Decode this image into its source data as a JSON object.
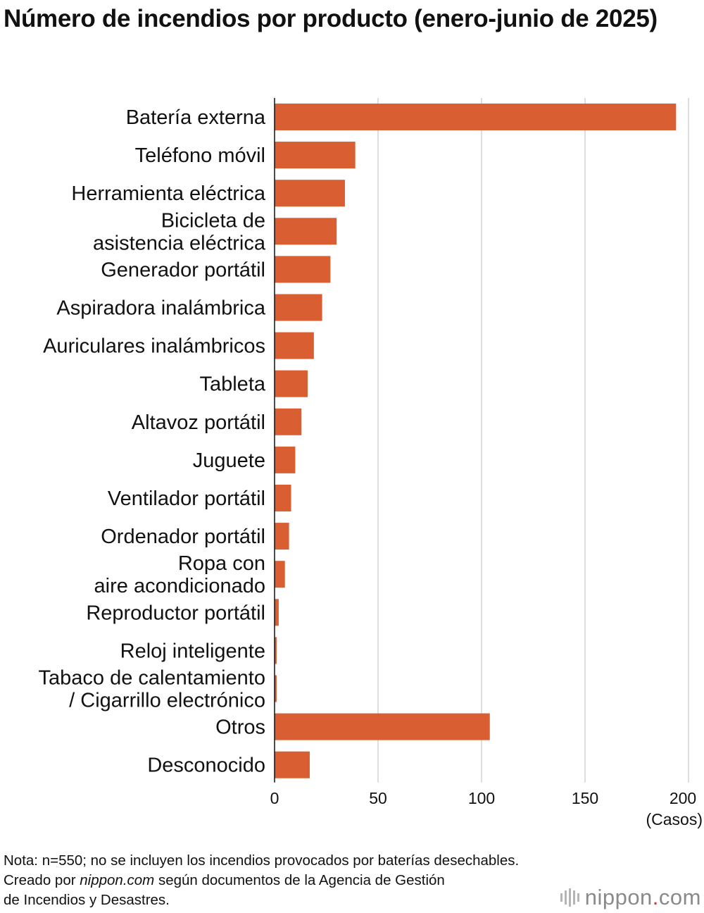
{
  "title": "Número de incendios por producto (enero-junio de 2025)",
  "chart_data": {
    "type": "bar",
    "orientation": "horizontal",
    "title": "Número de incendios por producto (enero-junio de 2025)",
    "unit_label": "(Casos)",
    "xlim": [
      0,
      200
    ],
    "x_ticks": [
      0,
      50,
      100,
      150,
      200
    ],
    "grid": true,
    "bar_color": "#d95f32",
    "categories": [
      [
        "Batería externa"
      ],
      [
        "Teléfono móvil"
      ],
      [
        "Herramienta eléctrica"
      ],
      [
        "Bicicleta de",
        "asistencia eléctrica"
      ],
      [
        "Generador portátil"
      ],
      [
        "Aspiradora inalámbrica"
      ],
      [
        "Auriculares inalámbricos"
      ],
      [
        "Tableta"
      ],
      [
        "Altavoz portátil"
      ],
      [
        "Juguete"
      ],
      [
        "Ventilador portátil"
      ],
      [
        "Ordenador portátil"
      ],
      [
        "Ropa con",
        "aire acondicionado"
      ],
      [
        "Reproductor portátil"
      ],
      [
        "Reloj inteligente"
      ],
      [
        "Tabaco de calentamiento",
        "/ Cigarrillo electrónico"
      ],
      [
        "Otros"
      ],
      [
        "Desconocido"
      ]
    ],
    "values": [
      194,
      39,
      34,
      30,
      27,
      23,
      19,
      16,
      13,
      10,
      8,
      7,
      5,
      2,
      1,
      1,
      104,
      17
    ]
  },
  "notes": {
    "line1": "Nota: n=550; no se incluyen los incendios provocados por baterías desechables.",
    "line2_prefix": "Creado por ",
    "line2_source": "nippon.com",
    "line2_suffix": " según documentos de la Agencia de Gestión",
    "line3": "de Incendios y Desastres."
  },
  "logo": {
    "name": "nippon",
    "dot": ".",
    "tld": "com"
  }
}
